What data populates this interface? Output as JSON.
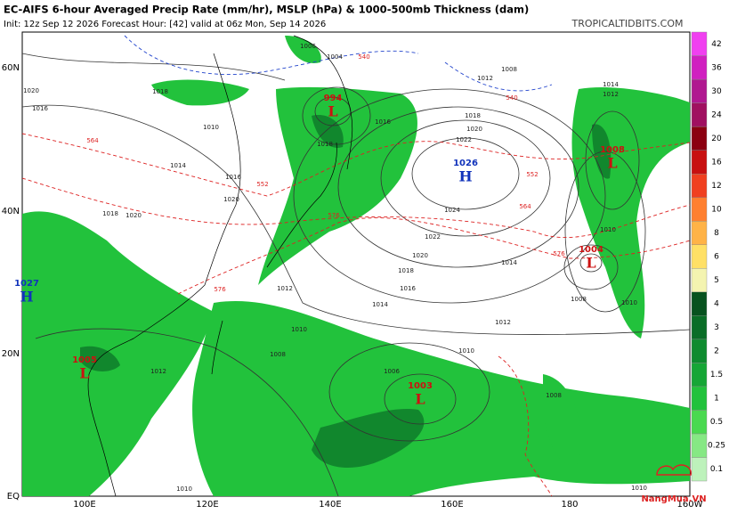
{
  "header": {
    "title": "EC-AIFS 6-hour Averaged Precip Rate (mm/hr), MSLP (hPa) & 1000-500mb Thickness (dam)",
    "subtitle": "Init: 12z Sep 12 2026   Forecast Hour: [42]   valid at 06z Mon, Sep 14 2026",
    "brand": "TROPICALTIDBITS.COM"
  },
  "map": {
    "lat_labels": [
      "60N",
      "40N",
      "20N",
      "EQ"
    ],
    "lon_labels": [
      "100E",
      "120E",
      "140E",
      "160E",
      "180",
      "160W"
    ],
    "pressure_centers": [
      {
        "value": "994",
        "letter": "L"
      },
      {
        "value": "1026",
        "letter": "H"
      },
      {
        "value": "1008",
        "letter": "L"
      },
      {
        "value": "1004",
        "letter": "L"
      },
      {
        "value": "1027",
        "letter": "H"
      },
      {
        "value": "1005",
        "letter": "L"
      },
      {
        "value": "1003",
        "letter": "L"
      }
    ],
    "isobar_labels": [
      "1006",
      "1004",
      "1008",
      "1012",
      "1020",
      "1018",
      "1016",
      "1010",
      "1014",
      "1016",
      "1020",
      "1018",
      "1020",
      "1022",
      "1020",
      "1018",
      "1024",
      "1022",
      "1020",
      "1018",
      "1016",
      "1014",
      "1012",
      "1014",
      "1012",
      "1010",
      "1008",
      "1010",
      "1012",
      "1006",
      "1008",
      "1010",
      "1010",
      "1012",
      "1014",
      "1008",
      "1016",
      "1018",
      "1010",
      "1010"
    ],
    "thickness_labels": [
      "540",
      "540",
      "552",
      "564",
      "576",
      "564",
      "552",
      "576",
      "576"
    ]
  },
  "colorbar": [
    {
      "label": "0.1",
      "color": "#bdf2bb"
    },
    {
      "label": "0.25",
      "color": "#86e884"
    },
    {
      "label": "0.5",
      "color": "#4ad950"
    },
    {
      "label": "1",
      "color": "#22c23c"
    },
    {
      "label": "1.5",
      "color": "#16a636"
    },
    {
      "label": "2",
      "color": "#0e8b2f"
    },
    {
      "label": "3",
      "color": "#0a6d27"
    },
    {
      "label": "4",
      "color": "#07521f"
    },
    {
      "label": "5",
      "color": "#f4f4b0"
    },
    {
      "label": "6",
      "color": "#ffe066"
    },
    {
      "label": "8",
      "color": "#ffb347"
    },
    {
      "label": "10",
      "color": "#ff8030"
    },
    {
      "label": "12",
      "color": "#f04020"
    },
    {
      "label": "16",
      "color": "#c81010"
    },
    {
      "label": "20",
      "color": "#8b0010"
    },
    {
      "label": "24",
      "color": "#a01060"
    },
    {
      "label": "30",
      "color": "#b01890"
    },
    {
      "label": "36",
      "color": "#d020c0"
    },
    {
      "label": "42",
      "color": "#f040f0"
    }
  ],
  "watermark": "NangMua.VN"
}
